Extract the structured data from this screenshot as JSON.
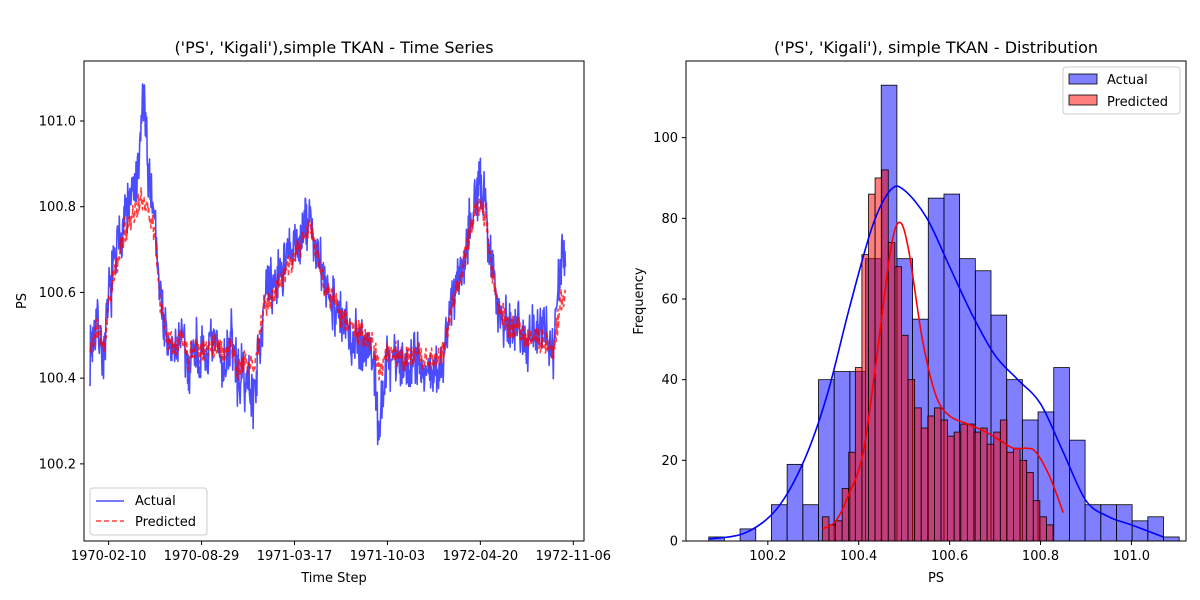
{
  "chart_data": [
    {
      "type": "line",
      "title": "('PS', 'Kigali'),simple TKAN - Time Series",
      "xlabel": "Time Step",
      "ylabel": "PS",
      "x_ticks": [
        "1970-02-10",
        "1970-08-29",
        "1971-03-17",
        "1971-10-03",
        "1972-04-20",
        "1972-11-06"
      ],
      "y_ticks": [
        "100.2",
        "100.4",
        "100.6",
        "100.8",
        "101.0"
      ],
      "xlim": [
        "1969-12-19",
        "1972-11-29"
      ],
      "ylim": [
        100.02,
        101.14
      ],
      "grid": false,
      "legend": "lower-left",
      "series": [
        {
          "name": "Actual",
          "color": "#0000ff",
          "style": "solid",
          "points": [
            [
              "1970-01-01",
              100.46
            ],
            [
              "1970-01-15",
              100.54
            ],
            [
              "1970-02-01",
              100.44
            ],
            [
              "1970-02-10",
              100.59
            ],
            [
              "1970-03-01",
              100.7
            ],
            [
              "1970-03-15",
              100.78
            ],
            [
              "1970-04-01",
              100.82
            ],
            [
              "1970-04-15",
              100.86
            ],
            [
              "1970-04-25",
              101.07
            ],
            [
              "1970-05-05",
              100.9
            ],
            [
              "1970-05-20",
              100.78
            ],
            [
              "1970-06-01",
              100.6
            ],
            [
              "1970-06-15",
              100.48
            ],
            [
              "1970-07-01",
              100.46
            ],
            [
              "1970-07-15",
              100.5
            ],
            [
              "1970-08-01",
              100.42
            ],
            [
              "1970-08-15",
              100.48
            ],
            [
              "1970-08-29",
              100.44
            ],
            [
              "1970-09-15",
              100.46
            ],
            [
              "1970-10-01",
              100.48
            ],
            [
              "1970-10-15",
              100.42
            ],
            [
              "1970-11-01",
              100.5
            ],
            [
              "1970-11-15",
              100.4
            ],
            [
              "1970-12-01",
              100.4
            ],
            [
              "1970-12-20",
              100.36
            ],
            [
              "1971-01-10",
              100.58
            ],
            [
              "1971-02-01",
              100.62
            ],
            [
              "1971-02-20",
              100.66
            ],
            [
              "1971-03-17",
              100.7
            ],
            [
              "1971-04-05",
              100.74
            ],
            [
              "1971-04-20",
              100.78
            ],
            [
              "1971-05-01",
              100.7
            ],
            [
              "1971-05-20",
              100.62
            ],
            [
              "1971-06-10",
              100.58
            ],
            [
              "1971-07-01",
              100.52
            ],
            [
              "1971-07-20",
              100.5
            ],
            [
              "1971-08-10",
              100.48
            ],
            [
              "1971-09-01",
              100.46
            ],
            [
              "1971-09-15",
              100.28
            ],
            [
              "1971-10-03",
              100.44
            ],
            [
              "1971-10-20",
              100.46
            ],
            [
              "1971-11-10",
              100.42
            ],
            [
              "1971-12-01",
              100.46
            ],
            [
              "1971-12-20",
              100.42
            ],
            [
              "1972-01-10",
              100.4
            ],
            [
              "1972-02-01",
              100.44
            ],
            [
              "1972-02-20",
              100.6
            ],
            [
              "1972-03-10",
              100.66
            ],
            [
              "1972-03-25",
              100.74
            ],
            [
              "1972-04-05",
              100.82
            ],
            [
              "1972-04-20",
              100.84
            ],
            [
              "1972-05-01",
              100.8
            ],
            [
              "1972-05-15",
              100.66
            ],
            [
              "1972-06-01",
              100.56
            ],
            [
              "1972-06-20",
              100.52
            ],
            [
              "1972-07-10",
              100.54
            ],
            [
              "1972-08-01",
              100.48
            ],
            [
              "1972-08-20",
              100.52
            ],
            [
              "1972-09-10",
              100.5
            ],
            [
              "1972-09-25",
              100.46
            ],
            [
              "1972-10-10",
              100.68
            ],
            [
              "1972-10-20",
              100.66
            ]
          ]
        },
        {
          "name": "Predicted",
          "color": "#ff0000",
          "style": "dashed",
          "points": [
            [
              "1970-01-01",
              100.46
            ],
            [
              "1970-01-15",
              100.52
            ],
            [
              "1970-02-01",
              100.47
            ],
            [
              "1970-02-10",
              100.58
            ],
            [
              "1970-03-01",
              100.67
            ],
            [
              "1970-03-15",
              100.74
            ],
            [
              "1970-04-01",
              100.78
            ],
            [
              "1970-04-15",
              100.8
            ],
            [
              "1970-04-25",
              100.82
            ],
            [
              "1970-05-05",
              100.8
            ],
            [
              "1970-05-20",
              100.74
            ],
            [
              "1970-06-01",
              100.58
            ],
            [
              "1970-06-15",
              100.5
            ],
            [
              "1970-07-01",
              100.48
            ],
            [
              "1970-07-15",
              100.5
            ],
            [
              "1970-08-01",
              100.45
            ],
            [
              "1970-08-15",
              100.48
            ],
            [
              "1970-08-29",
              100.46
            ],
            [
              "1970-09-15",
              100.48
            ],
            [
              "1970-10-01",
              100.48
            ],
            [
              "1970-10-15",
              100.46
            ],
            [
              "1970-11-01",
              100.48
            ],
            [
              "1970-11-15",
              100.42
            ],
            [
              "1970-12-01",
              100.44
            ],
            [
              "1970-12-20",
              100.42
            ],
            [
              "1971-01-10",
              100.56
            ],
            [
              "1971-02-01",
              100.6
            ],
            [
              "1971-02-20",
              100.64
            ],
            [
              "1971-03-17",
              100.68
            ],
            [
              "1971-04-05",
              100.72
            ],
            [
              "1971-04-20",
              100.76
            ],
            [
              "1971-05-01",
              100.7
            ],
            [
              "1971-05-20",
              100.62
            ],
            [
              "1971-06-10",
              100.58
            ],
            [
              "1971-07-01",
              100.54
            ],
            [
              "1971-07-20",
              100.52
            ],
            [
              "1971-08-10",
              100.5
            ],
            [
              "1971-09-01",
              100.48
            ],
            [
              "1971-09-15",
              100.42
            ],
            [
              "1971-10-03",
              100.46
            ],
            [
              "1971-10-20",
              100.46
            ],
            [
              "1971-11-10",
              100.44
            ],
            [
              "1971-12-01",
              100.46
            ],
            [
              "1971-12-20",
              100.44
            ],
            [
              "1972-01-10",
              100.44
            ],
            [
              "1972-02-01",
              100.46
            ],
            [
              "1972-02-20",
              100.58
            ],
            [
              "1972-03-10",
              100.64
            ],
            [
              "1972-03-25",
              100.72
            ],
            [
              "1972-04-05",
              100.78
            ],
            [
              "1972-04-20",
              100.8
            ],
            [
              "1972-05-01",
              100.78
            ],
            [
              "1972-05-15",
              100.64
            ],
            [
              "1972-06-01",
              100.56
            ],
            [
              "1972-06-20",
              100.52
            ],
            [
              "1972-07-10",
              100.52
            ],
            [
              "1972-08-01",
              100.48
            ],
            [
              "1972-08-20",
              100.5
            ],
            [
              "1972-09-10",
              100.48
            ],
            [
              "1972-09-25",
              100.46
            ],
            [
              "1972-10-10",
              100.58
            ],
            [
              "1972-10-20",
              100.6
            ]
          ]
        }
      ]
    },
    {
      "type": "histogram",
      "title": "('PS', 'Kigali'), simple TKAN - Distribution",
      "xlabel": "PS",
      "ylabel": "Frequency",
      "x_ticks": [
        "100.2",
        "100.4",
        "100.6",
        "100.8",
        "101.0"
      ],
      "y_ticks": [
        "0",
        "20",
        "40",
        "60",
        "80",
        "100"
      ],
      "xlim": [
        100.02,
        101.12
      ],
      "ylim": [
        0,
        119
      ],
      "grid": false,
      "legend": "top-right",
      "series": [
        {
          "name": "Actual",
          "color": "#0000ff",
          "bin_start": 100.07,
          "bin_width": 0.0345,
          "counts": [
            1,
            0,
            3,
            0,
            9,
            19,
            9,
            40,
            42,
            42,
            70,
            113,
            70,
            55,
            85,
            86,
            70,
            67,
            56,
            40,
            30,
            32,
            43,
            25,
            9,
            9,
            9,
            5,
            6,
            1
          ],
          "kde": [
            [
              100.07,
              0.5
            ],
            [
              100.15,
              2
            ],
            [
              100.22,
              8
            ],
            [
              100.28,
              20
            ],
            [
              100.33,
              36
            ],
            [
              100.38,
              58
            ],
            [
              100.43,
              78
            ],
            [
              100.47,
              87
            ],
            [
              100.5,
              87
            ],
            [
              100.55,
              80
            ],
            [
              100.6,
              68
            ],
            [
              100.65,
              56
            ],
            [
              100.7,
              46
            ],
            [
              100.75,
              40
            ],
            [
              100.8,
              34
            ],
            [
              100.85,
              22
            ],
            [
              100.9,
              10
            ],
            [
              100.95,
              6
            ],
            [
              101.0,
              4
            ],
            [
              101.07,
              1
            ]
          ]
        },
        {
          "name": "Predicted",
          "color": "#ff0000",
          "bin_start": 100.32,
          "bin_width": 0.0145,
          "counts": [
            6,
            4,
            5,
            13,
            22,
            43,
            71,
            86,
            90,
            92,
            74,
            68,
            51,
            40,
            33,
            28,
            31,
            33,
            30,
            26,
            27,
            29,
            29,
            27,
            28,
            24,
            27,
            30,
            22,
            23,
            20,
            17,
            10,
            6,
            4
          ],
          "kde": [
            [
              100.32,
              3
            ],
            [
              100.35,
              5
            ],
            [
              100.38,
              12
            ],
            [
              100.41,
              22
            ],
            [
              100.44,
              46
            ],
            [
              100.47,
              72
            ],
            [
              100.49,
              79
            ],
            [
              100.51,
              72
            ],
            [
              100.54,
              50
            ],
            [
              100.57,
              36
            ],
            [
              100.6,
              31
            ],
            [
              100.64,
              29
            ],
            [
              100.68,
              27
            ],
            [
              100.71,
              25
            ],
            [
              100.74,
              23
            ],
            [
              100.77,
              23
            ],
            [
              100.79,
              22
            ],
            [
              100.82,
              16
            ],
            [
              100.85,
              7
            ]
          ]
        }
      ]
    }
  ]
}
